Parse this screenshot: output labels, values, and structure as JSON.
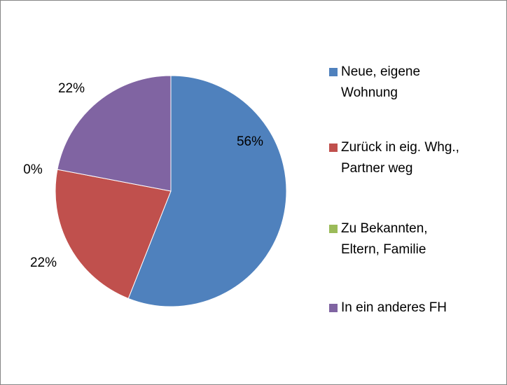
{
  "chart_data": {
    "type": "pie",
    "categories": [
      "Neue, eigene Wohnung",
      "Zurück in eig. Whg., Partner weg",
      "Zu Bekannten, Eltern, Familie",
      "In ein anderes FH"
    ],
    "values": [
      56,
      22,
      0,
      22
    ],
    "value_labels": [
      "56%",
      "22%",
      "0%",
      "22%"
    ],
    "colors": [
      "#4f81bd",
      "#c0504d",
      "#9bbb59",
      "#8064a2"
    ],
    "legend": "right"
  }
}
